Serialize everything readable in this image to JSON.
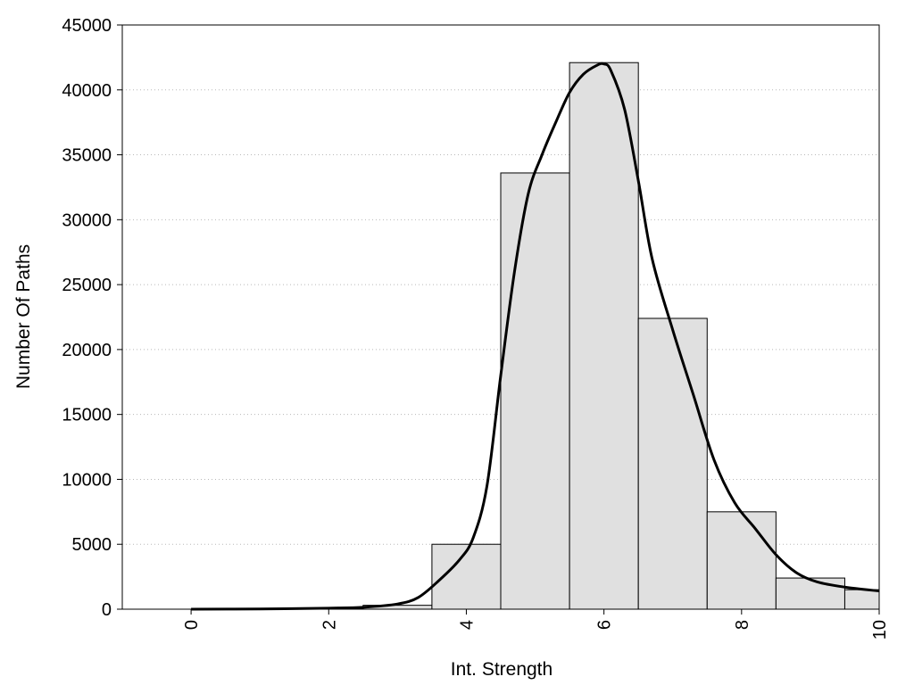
{
  "chart_data": {
    "type": "bar",
    "title": "",
    "xlabel": "Int. Strength",
    "ylabel": "Number Of Paths",
    "xlim": [
      -1,
      10
    ],
    "ylim": [
      0,
      45000
    ],
    "x_ticks": [
      0,
      2,
      4,
      6,
      8,
      10
    ],
    "x_tick_labels": [
      "0",
      "2",
      "4",
      "6",
      "8",
      "10"
    ],
    "y_ticks": [
      0,
      5000,
      10000,
      15000,
      20000,
      25000,
      30000,
      35000,
      40000,
      45000
    ],
    "y_tick_labels": [
      "0",
      "5000",
      "10000",
      "15000",
      "20000",
      "25000",
      "30000",
      "35000",
      "40000",
      "45000"
    ],
    "grid": "horizontal dotted",
    "bar_color": "#e0e0e0",
    "bars": [
      {
        "x": 0,
        "value": 0
      },
      {
        "x": 1,
        "value": 0
      },
      {
        "x": 2,
        "value": 50
      },
      {
        "x": 3,
        "value": 300
      },
      {
        "x": 4,
        "value": 5000
      },
      {
        "x": 5,
        "value": 33600
      },
      {
        "x": 6,
        "value": 42100
      },
      {
        "x": 7,
        "value": 22400
      },
      {
        "x": 8,
        "value": 7500
      },
      {
        "x": 9,
        "value": 2400
      },
      {
        "x": 10,
        "value": 1500
      }
    ],
    "series": [
      {
        "type": "line",
        "x": [
          0,
          1,
          2,
          2.5,
          3,
          3.3,
          3.6,
          3.9,
          4.1,
          4.3,
          4.5,
          4.7,
          4.9,
          5.1,
          5.3,
          5.5,
          5.7,
          5.9,
          6.0,
          6.1,
          6.3,
          6.5,
          6.7,
          7.0,
          7.3,
          7.6,
          7.9,
          8.2,
          8.5,
          8.8,
          9.1,
          9.5,
          10.0
        ],
        "y": [
          0,
          20,
          80,
          150,
          400,
          900,
          2200,
          3800,
          5500,
          9500,
          18000,
          26000,
          32000,
          35000,
          37500,
          39800,
          41200,
          41900,
          42000,
          41500,
          38500,
          33000,
          27000,
          21500,
          16500,
          11500,
          8200,
          6200,
          4200,
          2800,
          2100,
          1700,
          1400
        ]
      }
    ]
  }
}
